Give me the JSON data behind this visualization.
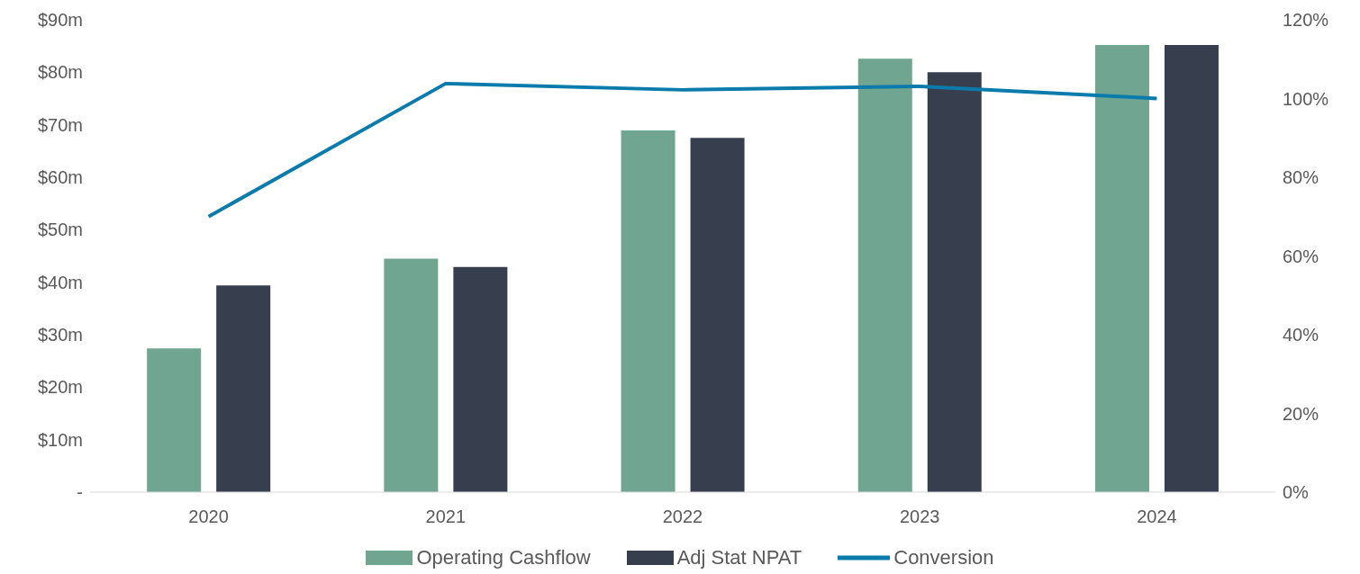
{
  "chart_data": {
    "type": "bar",
    "categories": [
      "2020",
      "2021",
      "2022",
      "2023",
      "2024"
    ],
    "series": [
      {
        "name": "Operating Cashflow",
        "color": "#70a591",
        "values": [
          27.4,
          44.5,
          68.9,
          82.6,
          85.2
        ]
      },
      {
        "name": "Adj Stat NPAT",
        "color": "#373f4f",
        "values": [
          39.4,
          42.9,
          67.5,
          80.0,
          85.2
        ]
      },
      {
        "name": "Conversion",
        "type": "line",
        "axis": "y2",
        "color": "#0b7bab",
        "values": [
          70,
          103.8,
          102.2,
          103.1,
          100
        ]
      }
    ],
    "ylim": [
      0,
      90
    ],
    "yticks": [
      {
        "value": 0,
        "label": "-"
      },
      {
        "value": 10,
        "label": "$10m"
      },
      {
        "value": 20,
        "label": "$20m"
      },
      {
        "value": 30,
        "label": "$30m"
      },
      {
        "value": 40,
        "label": "$40m"
      },
      {
        "value": 50,
        "label": "$50m"
      },
      {
        "value": 60,
        "label": "$60m"
      },
      {
        "value": 70,
        "label": "$70m"
      },
      {
        "value": 80,
        "label": "$80m"
      },
      {
        "value": 90,
        "label": "$90m"
      }
    ],
    "y2lim": [
      0,
      120
    ],
    "y2ticks": [
      {
        "value": 0,
        "label": "0%"
      },
      {
        "value": 20,
        "label": "20%"
      },
      {
        "value": 40,
        "label": "40%"
      },
      {
        "value": 60,
        "label": "60%"
      },
      {
        "value": 80,
        "label": "80%"
      },
      {
        "value": 100,
        "label": "100%"
      },
      {
        "value": 120,
        "label": "120%"
      }
    ],
    "grid": false,
    "legend": "bottom",
    "marker": "none"
  }
}
